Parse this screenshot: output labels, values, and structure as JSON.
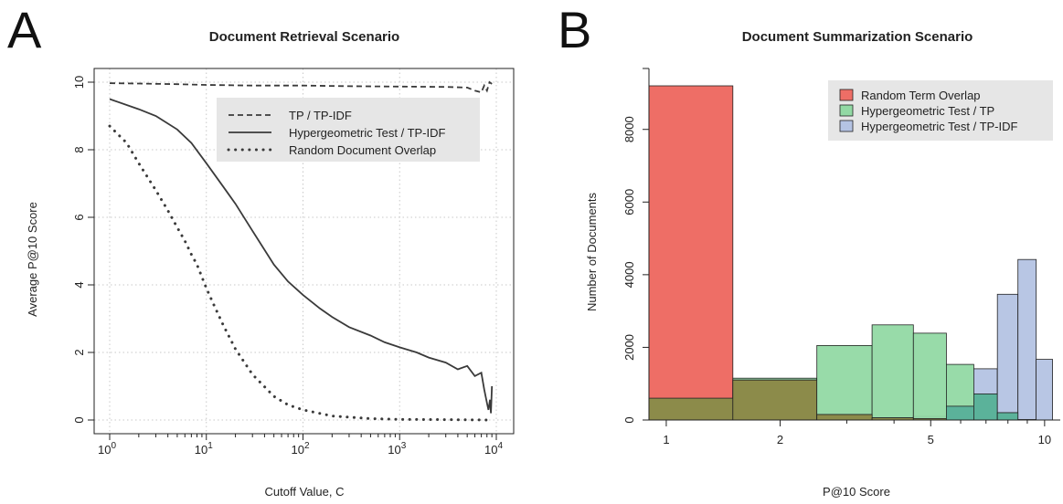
{
  "chart_data": [
    {
      "type": "line",
      "panel_letter": "A",
      "title": "Document Retrieval Scenario",
      "xlabel": "Cutoff Value, C",
      "ylabel": "Average P@10 Score",
      "x_scale": "log",
      "xlim": [
        1,
        10000
      ],
      "ylim": [
        0,
        10
      ],
      "x_ticks": [
        {
          "value": 1,
          "base": "10",
          "exp": "0"
        },
        {
          "value": 10,
          "base": "10",
          "exp": "1"
        },
        {
          "value": 100,
          "base": "10",
          "exp": "2"
        },
        {
          "value": 1000,
          "base": "10",
          "exp": "3"
        },
        {
          "value": 10000,
          "base": "10",
          "exp": "4"
        }
      ],
      "y_ticks": [
        {
          "value": 0,
          "label": "0"
        },
        {
          "value": 2,
          "label": "2"
        },
        {
          "value": 4,
          "label": "4"
        },
        {
          "value": 6,
          "label": "6"
        },
        {
          "value": 8,
          "label": "8"
        },
        {
          "value": 10,
          "label": "10"
        }
      ],
      "grid": true,
      "legend_position": "top-right",
      "series": [
        {
          "name": "TP / TP-IDF",
          "style": "dashed",
          "x": [
            1,
            2,
            5,
            10,
            30,
            100,
            300,
            1000,
            3000,
            5000,
            6000,
            7000,
            7500,
            8000,
            8500,
            9000
          ],
          "y": [
            9.97,
            9.96,
            9.94,
            9.92,
            9.9,
            9.9,
            9.88,
            9.87,
            9.86,
            9.84,
            9.75,
            9.7,
            9.9,
            9.75,
            10.0,
            9.95
          ]
        },
        {
          "name": "Hypergeometric Test / TP-IDF",
          "style": "solid",
          "x": [
            1,
            2,
            3,
            5,
            7,
            10,
            15,
            20,
            30,
            50,
            70,
            100,
            150,
            200,
            300,
            500,
            700,
            1000,
            1500,
            2000,
            3000,
            4000,
            5000,
            6000,
            7000,
            7500,
            8000,
            8300,
            8600,
            8800,
            9000
          ],
          "y": [
            9.5,
            9.2,
            9.0,
            8.6,
            8.2,
            7.6,
            6.9,
            6.4,
            5.6,
            4.6,
            4.1,
            3.7,
            3.3,
            3.05,
            2.75,
            2.5,
            2.3,
            2.15,
            2.0,
            1.85,
            1.7,
            1.5,
            1.6,
            1.3,
            1.4,
            0.9,
            0.5,
            0.3,
            0.6,
            0.2,
            1.0
          ]
        },
        {
          "name": "Random Document Overlap",
          "style": "dotted",
          "x": [
            1,
            1.5,
            2,
            3,
            4,
            5,
            6,
            7,
            8,
            10,
            12,
            15,
            20,
            30,
            50,
            70,
            100,
            200,
            500,
            1000,
            3000,
            9000
          ],
          "y": [
            8.7,
            8.2,
            7.6,
            6.8,
            6.2,
            5.7,
            5.3,
            4.9,
            4.6,
            3.9,
            3.4,
            2.8,
            2.1,
            1.35,
            0.7,
            0.45,
            0.3,
            0.12,
            0.04,
            0.02,
            0.01,
            0.0
          ]
        }
      ]
    },
    {
      "type": "bar",
      "panel_letter": "B",
      "title": "Document Summarization Scenario",
      "xlabel": "P@10 Score",
      "ylabel": "Number of Documents",
      "x_scale": "log",
      "xlim": [
        0.9,
        11
      ],
      "ylim": [
        0,
        9300
      ],
      "x_ticks": [
        {
          "value": 1,
          "label": "1"
        },
        {
          "value": 2,
          "label": "2"
        },
        {
          "value": 5,
          "label": "5"
        },
        {
          "value": 10,
          "label": "10"
        }
      ],
      "y_ticks": [
        {
          "value": 0,
          "label": "0"
        },
        {
          "value": 2000,
          "label": "2000"
        },
        {
          "value": 4000,
          "label": "4000"
        },
        {
          "value": 6000,
          "label": "6000"
        },
        {
          "value": 8000,
          "label": "8000"
        }
      ],
      "bins": [
        [
          0.9,
          1.5
        ],
        [
          1.5,
          2.5
        ],
        [
          2.5,
          3.5
        ],
        [
          3.5,
          4.5
        ],
        [
          4.5,
          5.5
        ],
        [
          5.5,
          6.5
        ],
        [
          6.5,
          7.5
        ],
        [
          7.5,
          8.5
        ],
        [
          8.5,
          9.5
        ],
        [
          9.5,
          10.5
        ]
      ],
      "legend_position": "top-right",
      "series": [
        {
          "name": "Random Term Overlap",
          "color": "#ee6e66",
          "values": [
            9200,
            1100,
            150,
            60,
            40,
            20,
            10,
            5,
            2,
            1
          ]
        },
        {
          "name": "Hypergeometric Test / TP",
          "color": "#92d9a4",
          "values": [
            600,
            1150,
            2050,
            2620,
            2390,
            1530,
            720,
            200,
            10,
            2
          ]
        },
        {
          "name": "Hypergeometric Test / TP-IDF",
          "color": "#b4c3e3",
          "values": [
            5,
            5,
            10,
            30,
            100,
            380,
            1410,
            3460,
            4420,
            1670
          ]
        }
      ]
    }
  ]
}
